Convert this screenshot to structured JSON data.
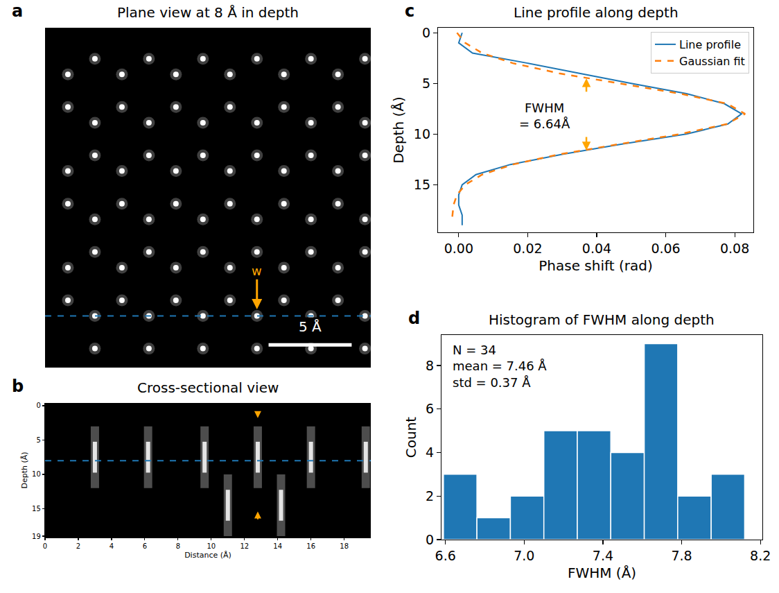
{
  "chart_data": [
    {
      "label": "a",
      "type": "image",
      "title": "Plane view at 8 Å in depth",
      "xlim": [
        0,
        19.6
      ],
      "ylim": [
        20.4,
        0
      ],
      "tick_labels": false,
      "color": "#ffffff",
      "atoms": [
        {
          "y": 1.86,
          "x": [
            3.0,
            6.25,
            9.5,
            12.75,
            16.0,
            19.25
          ]
        },
        {
          "y": 2.8,
          "x": [
            1.375,
            4.625,
            7.875,
            11.125,
            14.375,
            17.625
          ]
        },
        {
          "y": 4.76,
          "x": [
            1.375,
            4.625,
            7.875,
            11.125,
            14.375,
            17.625
          ]
        },
        {
          "y": 5.7,
          "x": [
            3.0,
            6.25,
            9.5,
            12.75,
            16.0,
            19.25
          ]
        },
        {
          "y": 7.66,
          "x": [
            3.0,
            6.25,
            9.5,
            12.75,
            16.0,
            19.25
          ]
        },
        {
          "y": 8.6,
          "x": [
            1.375,
            4.625,
            7.875,
            11.125,
            14.375,
            17.625
          ]
        },
        {
          "y": 10.56,
          "x": [
            1.375,
            4.625,
            7.875,
            11.125,
            14.375,
            17.625
          ]
        },
        {
          "y": 11.5,
          "x": [
            3.0,
            6.25,
            9.5,
            12.75,
            16.0,
            19.25
          ]
        },
        {
          "y": 13.46,
          "x": [
            3.0,
            6.25,
            9.5,
            12.75,
            16.0,
            19.25
          ]
        },
        {
          "y": 14.4,
          "x": [
            1.375,
            4.625,
            7.875,
            11.125,
            14.375,
            17.625
          ]
        },
        {
          "y": 16.36,
          "x": [
            1.375,
            4.625,
            7.875,
            11.125,
            14.375,
            17.625
          ]
        },
        {
          "y": 17.3,
          "x": [
            3.0,
            6.25,
            9.5,
            12.75,
            16.0,
            19.25
          ]
        },
        {
          "y": 19.26,
          "x": [
            3.0,
            6.25,
            9.5,
            12.75,
            16.0,
            19.25
          ]
        }
      ],
      "guide_line": {
        "y": 17.3,
        "color": "#1f77b4",
        "line_style": "dashed"
      },
      "arrow": {
        "label": "w",
        "x": 12.75,
        "y": [
          14.6,
          16.9
        ],
        "color": "#ffa500"
      },
      "scale_bar": {
        "length": 5,
        "label": "5 Å",
        "color": "#ffffff"
      }
    },
    {
      "label": "b",
      "type": "image",
      "title": "Cross-sectional view",
      "xlabel": "Distance (Å)",
      "ylabel": "Depth (Å)",
      "xlim": [
        0,
        19.6
      ],
      "ylim": [
        19.2,
        -0.4
      ],
      "xticks": [
        0,
        2,
        4,
        6,
        8,
        10,
        12,
        14,
        16,
        18
      ],
      "yticks": [
        0,
        5,
        10,
        15,
        19
      ],
      "color": "#ffffff",
      "columns": [
        {
          "x": 3.0,
          "depth": [
            3,
            12
          ]
        },
        {
          "x": 6.2,
          "depth": [
            3,
            12
          ]
        },
        {
          "x": 9.6,
          "depth": [
            3,
            12
          ]
        },
        {
          "x": 12.8,
          "depth": [
            3,
            12
          ]
        },
        {
          "x": 16.0,
          "depth": [
            3,
            12
          ]
        },
        {
          "x": 19.3,
          "depth": [
            3,
            12
          ]
        },
        {
          "x": 11.0,
          "depth": [
            10,
            19
          ]
        },
        {
          "x": 14.2,
          "depth": [
            10,
            19
          ]
        }
      ],
      "guide_line": {
        "y": 8,
        "color": "#1f77b4",
        "line_style": "dashed"
      },
      "arrows": [
        {
          "x": 12.8,
          "y": [
            0.0,
            1.8
          ]
        },
        {
          "x": 12.8,
          "y": [
            17.4,
            15.4
          ]
        }
      ],
      "arrow_color": "#ffa500"
    },
    {
      "label": "c",
      "type": "line",
      "title": "Line profile along depth",
      "xlabel": "Phase shift (rad)",
      "ylabel": "Depth (Å)",
      "xlim": [
        -0.006,
        0.0854
      ],
      "ylim": [
        19.7,
        -0.5
      ],
      "xticks": [
        {
          "value": 0,
          "label": "0.00"
        },
        0.02,
        0.04,
        0.06,
        0.08
      ],
      "yticks": [
        0,
        5,
        10,
        15
      ],
      "legend": "upper right",
      "series": [
        {
          "name": "Line profile",
          "color": "#1f77b4",
          "line_style": "solid",
          "x": [
            0.001,
            0.0,
            0.004,
            0.02,
            0.035,
            0.05,
            0.066,
            0.077,
            0.082,
            0.078,
            0.066,
            0.047,
            0.03,
            0.015,
            0.005,
            0.001,
            0.0,
            0.0,
            0.001,
            0.001
          ],
          "y": [
            0,
            1,
            2,
            3,
            4,
            5,
            6,
            7,
            8,
            9,
            10,
            11,
            12,
            13,
            14,
            15,
            16,
            17,
            18,
            19
          ]
        },
        {
          "name": "Gaussian fit",
          "color": "#ff7f0e",
          "line_style": "dashed",
          "x": [
            -0.0005,
            0.0019,
            0.0068,
            0.0157,
            0.0291,
            0.0463,
            0.0641,
            0.0778,
            0.083,
            0.0778,
            0.0641,
            0.0463,
            0.0291,
            0.0157,
            0.0068,
            0.0019,
            -0.0005,
            -0.0015,
            -0.0019,
            -0.002
          ],
          "y": [
            0,
            1,
            2,
            3,
            4,
            5,
            6,
            7,
            8,
            9,
            10,
            11,
            12,
            13,
            14,
            15,
            16,
            17,
            18,
            18.6
          ]
        }
      ],
      "annotation": {
        "lines": [
          "FWHM",
          "= 6.64Å"
        ],
        "x": 0.025,
        "y": 8.2
      },
      "arrows": [
        {
          "x": 0.037,
          "y": [
            6.4,
            4.5
          ]
        },
        {
          "x": 0.037,
          "y": [
            9.7,
            11.6
          ]
        }
      ],
      "arrow_color": "#ffa500"
    },
    {
      "label": "d",
      "type": "histogram",
      "title": "Histogram of FWHM along depth",
      "xlabel": "FWHM (Å)",
      "ylabel": "Count",
      "bins": [
        6.59,
        6.76,
        6.93,
        7.1,
        7.27,
        7.44,
        7.61,
        7.78,
        7.95,
        8.12
      ],
      "values": [
        3,
        1,
        2,
        5,
        5,
        4,
        9,
        2,
        3
      ],
      "color": "#1f77b4",
      "xlim": [
        6.58,
        8.21
      ],
      "ylim": [
        0,
        9.4
      ],
      "xticks": [
        6.6,
        {
          "value": 7,
          "label": "7.0"
        },
        7.4,
        7.8,
        8.2
      ],
      "yticks": [
        0,
        2,
        4,
        6,
        8
      ],
      "annotation": {
        "lines": [
          "N = 34",
          "mean = 7.46 Å",
          "std = 0.37 Å"
        ]
      }
    }
  ]
}
